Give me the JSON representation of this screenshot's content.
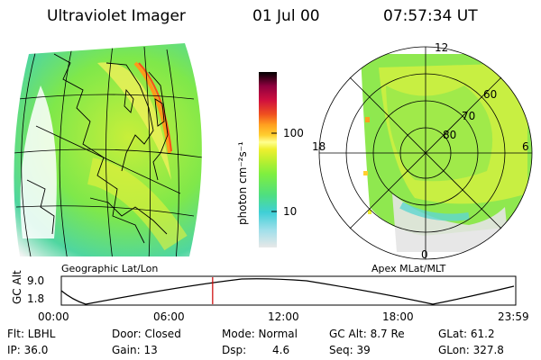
{
  "header": {
    "title": "Ultraviolet Imager",
    "date": "01 Jul 00",
    "time": "07:57:34 UT"
  },
  "left_panel": {
    "caption": "Geographic Lat/Lon"
  },
  "right_panel": {
    "caption": "Apex MLat/MLT",
    "mlt_labels": [
      "12",
      "18",
      "6",
      "0"
    ],
    "mlat_labels": [
      "60",
      "70",
      "80"
    ]
  },
  "colorbar": {
    "unit_label": "photon cm⁻²s⁻¹",
    "scale": "log",
    "ticks": [
      "100",
      "10"
    ],
    "colors": [
      "#e8e8e8",
      "#9fdfea",
      "#3fcfd6",
      "#4fdf7f",
      "#7fef3f",
      "#bfef2f",
      "#efef2f",
      "#ffff8f",
      "#ffcf2f",
      "#ff9f1f",
      "#ef4f1f",
      "#cf0f3f",
      "#8f003f",
      "#2f003f",
      "#000000"
    ]
  },
  "timeline": {
    "axis_label": "GC Alt",
    "y_ticks": [
      "9.0",
      "1.8"
    ],
    "x_ticks": [
      "00:00",
      "06:00",
      "12:00",
      "18:00",
      "23:59"
    ],
    "current_time_fraction": 0.333,
    "marker_color": "#cc0000"
  },
  "info": {
    "flt": "Flt: LBHL",
    "ip": "IP: 36.0",
    "door": "Door: Closed",
    "gain": "Gain: 13",
    "mode": "Mode: Normal",
    "dsp_label": "Dsp:",
    "dsp_value": "4.6",
    "gc_alt": "GC Alt: 8.7 Re",
    "seq": "Seq: 39",
    "glat": "GLat: 61.2",
    "glon": "GLon: 327.8"
  }
}
